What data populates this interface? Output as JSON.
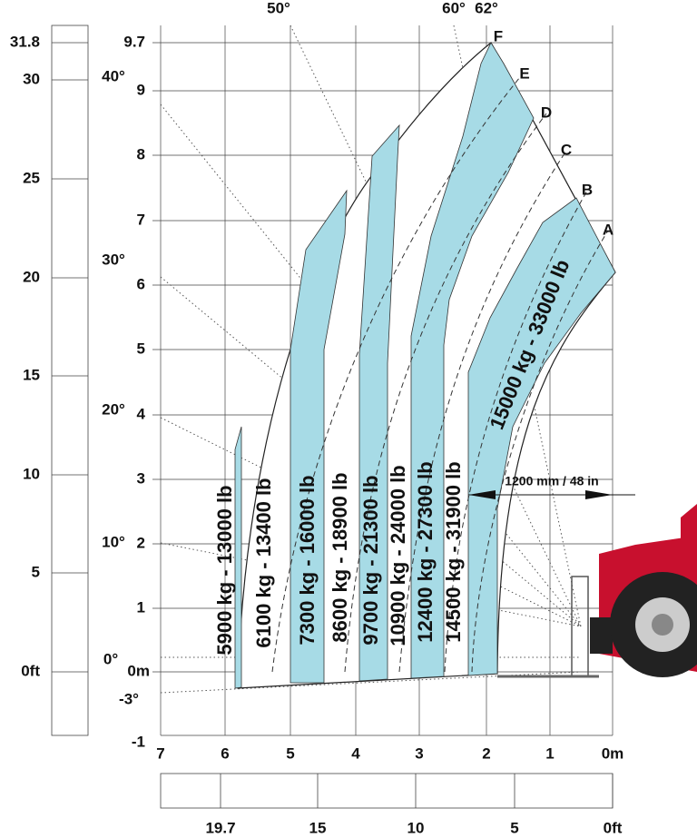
{
  "axes": {
    "height_m": [
      "9.7",
      "9",
      "8",
      "7",
      "6",
      "5",
      "4",
      "3",
      "2",
      "1",
      "0m",
      "-1"
    ],
    "height_ft": [
      "31.8",
      "30",
      "25",
      "20",
      "15",
      "10",
      "5",
      "0ft"
    ],
    "reach_m": [
      "7",
      "6",
      "5",
      "4",
      "3",
      "2",
      "1",
      "0m"
    ],
    "reach_ft": [
      "19.7",
      "15",
      "10",
      "5",
      "0ft"
    ]
  },
  "angles": [
    "50°",
    "60°",
    "62°",
    "40°",
    "30°",
    "20°",
    "10°",
    "0°",
    "-3°"
  ],
  "boom_positions": [
    "A",
    "B",
    "C",
    "D",
    "E",
    "F"
  ],
  "load_bands": [
    "5900 kg - 13000 lb",
    "6100 kg - 13400 lb",
    "7300 kg - 16000 lb",
    "8600 kg - 18900 lb",
    "9700 kg - 21300 lb",
    "10900 kg - 24000 lb",
    "12400 kg - 27300 lb",
    "14500 kg - 31900 lb",
    "15000 kg - 33000 lb"
  ],
  "dimension": "1200 mm / 48 in"
}
